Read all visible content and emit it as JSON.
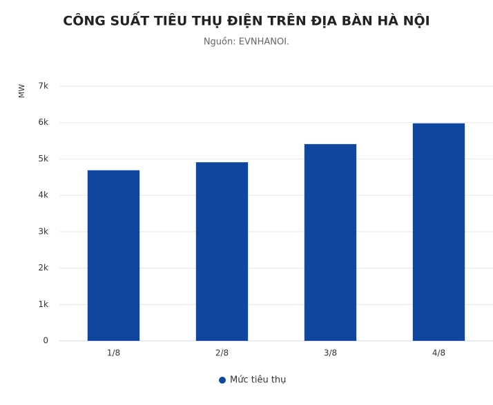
{
  "chart_data": {
    "type": "bar",
    "title": "CÔNG SUẤT TIÊU THỤ ĐIỆN TRÊN ĐỊA BÀN HÀ NỘI",
    "subtitle": "Nguồn: EVNHANOI.",
    "y_label": "MW",
    "categories": [
      "1/8",
      "2/8",
      "3/8",
      "4/8"
    ],
    "series": [
      {
        "name": "Mức tiêu thụ",
        "color": "#0f47a0",
        "values": [
          4690,
          4910,
          5410,
          5980
        ]
      }
    ],
    "ylim": [
      0,
      7000
    ],
    "yticks": [
      0,
      {
        "value": 1000,
        "label": "1k"
      },
      {
        "value": 2000,
        "label": "2k"
      },
      {
        "value": 3000,
        "label": "3k"
      },
      {
        "value": 4000,
        "label": "4k"
      },
      {
        "value": 5000,
        "label": "5k"
      },
      {
        "value": 6000,
        "label": "6k"
      },
      {
        "value": 7000,
        "label": "7k"
      }
    ],
    "grid": true,
    "legend": "bottom"
  }
}
